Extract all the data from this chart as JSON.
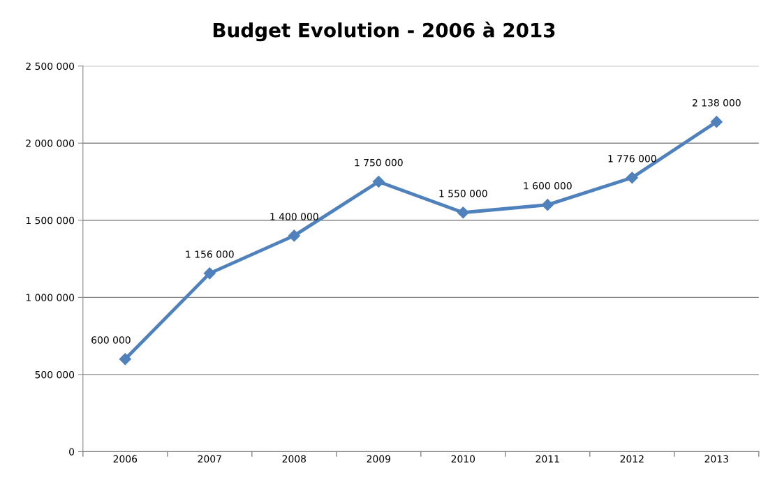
{
  "chart_data": {
    "type": "line",
    "title": "Budget Evolution - 2006 à 2013",
    "categories": [
      "2006",
      "2007",
      "2008",
      "2009",
      "2010",
      "2011",
      "2012",
      "2013"
    ],
    "series": [
      {
        "color": "#4f81bd",
        "values": [
          600000,
          1156000,
          1400000,
          1750000,
          1550000,
          1600000,
          1776000,
          2138000
        ],
        "value_labels": [
          "600 000",
          "1 156 000",
          "1 400 000",
          "1 750 000",
          "1 550 000",
          "1 600 000",
          "1 776 000",
          "2 138 000"
        ]
      }
    ],
    "ylim": [
      0,
      2500000
    ],
    "yticks": [
      0,
      {
        "value": 500000,
        "label": "500 000"
      },
      {
        "value": 1000000,
        "label": "1 000 000"
      },
      {
        "value": 1500000,
        "label": "1 500 000"
      },
      {
        "value": 2000000,
        "label": "2 000 000"
      },
      {
        "value": 2500000,
        "label": "2 500 000"
      }
    ],
    "grid": "y",
    "marker": "diamond",
    "line_style": "solid"
  }
}
